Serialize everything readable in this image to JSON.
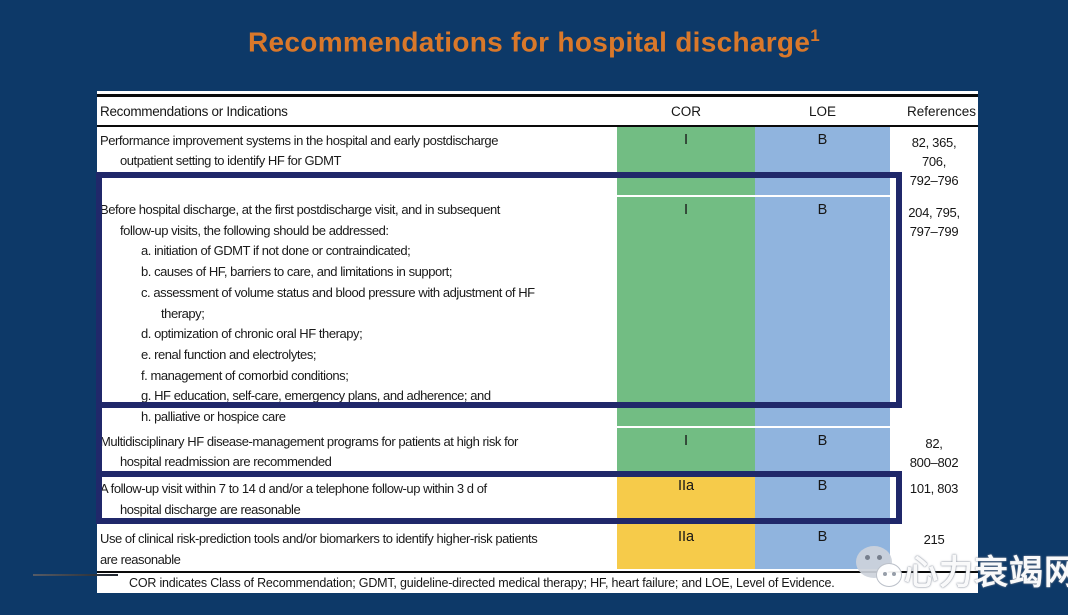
{
  "slide": {
    "title": "Recommendations for hospital discharge",
    "title_superscript": "1",
    "colors": {
      "background": "#0d3968",
      "title": "#d9782a",
      "highlight_border": "#20286a",
      "cor_class_i_green": "#72bd83",
      "cor_class_iia_yellow": "#f6cb4a",
      "loe_b_blue": "#90b4de"
    }
  },
  "table": {
    "headers": {
      "indications": "Recommendations or Indications",
      "cor": "COR",
      "loe": "LOE",
      "references": "References"
    },
    "rows": [
      {
        "lines": [
          {
            "text": "Performance improvement systems in the hospital and early postdischarge",
            "indent": 0
          },
          {
            "text": "outpatient setting to identify HF for GDMT",
            "indent": 1
          }
        ],
        "cor": "I",
        "cor_color": "#72bd83",
        "loe": "B",
        "loe_color": "#90b4de",
        "references": [
          "82, 365,",
          "706,",
          "792–796"
        ],
        "highlighted": false
      },
      {
        "lines": [
          {
            "text": "Before hospital discharge, at the first postdischarge visit, and in subsequent",
            "indent": 0
          },
          {
            "text": "follow-up visits, the following should be addressed:",
            "indent": 1
          },
          {
            "text": "a. initiation of GDMT if not done or contraindicated;",
            "indent": 2
          },
          {
            "text": "b. causes of HF, barriers to care, and limitations in support;",
            "indent": 2
          },
          {
            "text": "c. assessment of volume status and blood pressure with adjustment of HF",
            "indent": 2
          },
          {
            "text": "therapy;",
            "indent": 3
          },
          {
            "text": "d. optimization of chronic oral HF therapy;",
            "indent": 2
          },
          {
            "text": "e. renal function and electrolytes;",
            "indent": 2
          },
          {
            "text": "f. management of comorbid conditions;",
            "indent": 2
          },
          {
            "text": "g. HF education, self-care, emergency plans, and adherence; and",
            "indent": 2
          },
          {
            "text": "h. palliative or hospice care",
            "indent": 2
          }
        ],
        "cor": "I",
        "cor_color": "#72bd83",
        "loe": "B",
        "loe_color": "#90b4de",
        "references": [
          "204, 795,",
          "797–799"
        ],
        "highlighted": true
      },
      {
        "lines": [
          {
            "text": "Multidisciplinary HF disease-management programs for patients at high risk for",
            "indent": 0
          },
          {
            "text": "hospital readmission are recommended",
            "indent": 1
          }
        ],
        "cor": "I",
        "cor_color": "#72bd83",
        "loe": "B",
        "loe_color": "#90b4de",
        "references": [
          "82,",
          "800–802"
        ],
        "highlighted": false
      },
      {
        "lines": [
          {
            "text": "A follow-up visit within 7 to 14 d and/or a telephone follow-up within 3 d of",
            "indent": 0
          },
          {
            "text": "hospital discharge are reasonable",
            "indent": 1
          }
        ],
        "cor": "IIa",
        "cor_color": "#f6cb4a",
        "loe": "B",
        "loe_color": "#90b4de",
        "references": [
          "101, 803"
        ],
        "highlighted": true
      },
      {
        "lines": [
          {
            "text": "Use of clinical risk-prediction tools and/or biomarkers to identify higher-risk patients",
            "indent": 0
          },
          {
            "text": "are reasonable",
            "indent": 0
          }
        ],
        "cor": "IIa",
        "cor_color": "#f6cb4a",
        "loe": "B",
        "loe_color": "#90b4de",
        "references": [
          "215"
        ],
        "highlighted": false
      }
    ],
    "footnote": "COR indicates Class of Recommendation; GDMT, guideline-directed medical therapy; HF, heart failure; and LOE, Level of Evidence."
  },
  "watermark": {
    "text": "心力衰竭网",
    "icon": "chat-bubbles-icon"
  }
}
